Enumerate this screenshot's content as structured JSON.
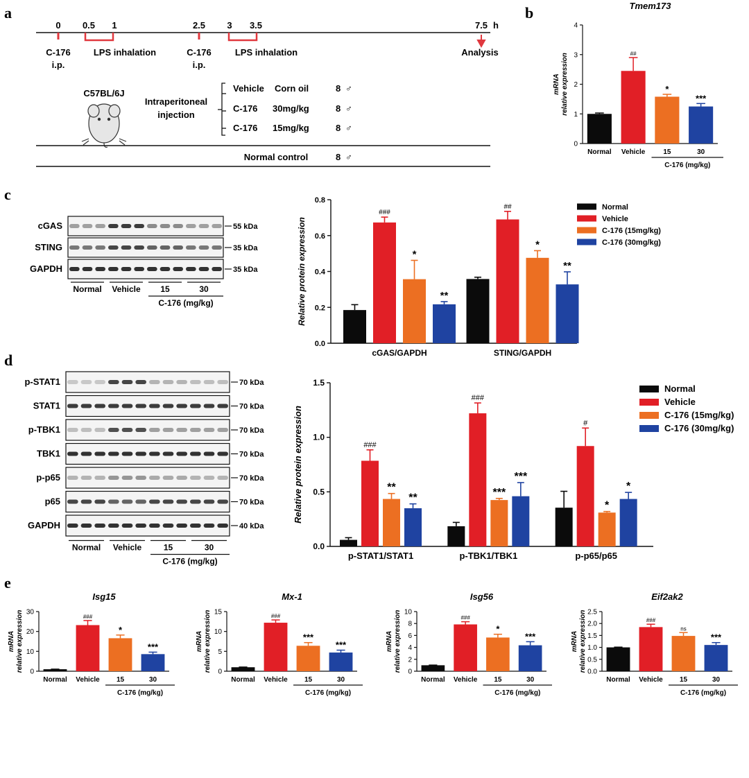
{
  "colors": {
    "normal": "#0b0b0b",
    "vehicle": "#e11f26",
    "c15": "#ec6f22",
    "c30": "#1f43a1",
    "timeline_marker": "#e0383e"
  },
  "panel_labels": {
    "a": "a",
    "b": "b",
    "c": "c",
    "d": "d",
    "e": "e"
  },
  "panel_a": {
    "times": [
      "0",
      "0.5",
      "1",
      "2.5",
      "3",
      "3.5",
      "7.5",
      "h"
    ],
    "events": {
      "c176_1": "C-176",
      "ip_1": "i.p.",
      "lps_1": "LPS inhalation",
      "c176_2": "C-176",
      "ip_2": "i.p.",
      "lps_2": "LPS inhalation",
      "analysis": "Analysis"
    },
    "strain": "C57BL/6J",
    "injection": [
      "Intraperitoneal",
      "injection"
    ],
    "groups": [
      {
        "name": "Vehicle",
        "dose": "Corn oil",
        "n": "8",
        "sex": "♂"
      },
      {
        "name": "C-176",
        "dose": "30mg/kg",
        "n": "8",
        "sex": "♂"
      },
      {
        "name": "C-176",
        "dose": "15mg/kg",
        "n": "8",
        "sex": "♂"
      }
    ],
    "control": {
      "name": "Normal control",
      "n": "8",
      "sex": "♂"
    }
  },
  "blot_c": {
    "rows": [
      {
        "label": "cGAS",
        "kda": "55 kDa"
      },
      {
        "label": "STING",
        "kda": "35 kDa"
      },
      {
        "label": "GAPDH",
        "kda": "35 kDa"
      }
    ],
    "groups": [
      "Normal",
      "Vehicle",
      "15",
      "30"
    ],
    "dose_label": "C-176 (mg/kg)"
  },
  "blot_d": {
    "rows": [
      {
        "label": "p-STAT1",
        "kda": "70 kDa"
      },
      {
        "label": "STAT1",
        "kda": "70 kDa"
      },
      {
        "label": "p-TBK1",
        "kda": "70 kDa"
      },
      {
        "label": "TBK1",
        "kda": "70 kDa"
      },
      {
        "label": "p-p65",
        "kda": "70 kDa"
      },
      {
        "label": "p65",
        "kda": "70 kDa"
      },
      {
        "label": "GAPDH",
        "kda": "40 kDa"
      }
    ],
    "groups": [
      "Normal",
      "Vehicle",
      "15",
      "30"
    ],
    "dose_label": "C-176 (mg/kg)"
  },
  "chart_data": [
    {
      "id": "b",
      "type": "bar",
      "title": "Tmem173",
      "ylabel": "mRNA relative expression",
      "ylim": [
        0,
        4
      ],
      "yticks": [
        "0",
        "1",
        "2",
        "3",
        "4"
      ],
      "categories": [
        "Normal",
        "Vehicle",
        "15",
        "30"
      ],
      "group_label": "C-176 (mg/kg)",
      "values": [
        1.0,
        2.45,
        1.58,
        1.25
      ],
      "errors": [
        0.03,
        0.45,
        0.08,
        0.1
      ],
      "annotations": [
        "",
        "##",
        "*",
        "***"
      ]
    },
    {
      "id": "c",
      "type": "bar",
      "ylabel": "Relative protein expression",
      "ylim": [
        0,
        0.8
      ],
      "yticks": [
        "0.0",
        "0.2",
        "0.4",
        "0.6",
        "0.8"
      ],
      "groups": [
        "cGAS/GAPDH",
        "STING/GAPDH"
      ],
      "legend": [
        "Normal",
        "Vehicle",
        "C-176 (15mg/kg)",
        "C-176 (30mg/kg)"
      ],
      "series": [
        {
          "name": "Normal",
          "values": [
            0.185,
            0.358
          ],
          "errors": [
            0.03,
            0.01
          ],
          "annotations": [
            "",
            ""
          ]
        },
        {
          "name": "Vehicle",
          "values": [
            0.673,
            0.69
          ],
          "errors": [
            0.03,
            0.045
          ],
          "annotations": [
            "###",
            "##"
          ]
        },
        {
          "name": "C-176 (15mg/kg)",
          "values": [
            0.357,
            0.476
          ],
          "errors": [
            0.105,
            0.04
          ],
          "annotations": [
            "*",
            "*"
          ]
        },
        {
          "name": "C-176 (30mg/kg)",
          "values": [
            0.217,
            0.328
          ],
          "errors": [
            0.015,
            0.07
          ],
          "annotations": [
            "**",
            "**"
          ]
        }
      ]
    },
    {
      "id": "d",
      "type": "bar",
      "ylabel": "Relative protein expression",
      "ylim": [
        0,
        1.5
      ],
      "yticks": [
        "0.0",
        "0.5",
        "1.0",
        "1.5"
      ],
      "groups": [
        "p-STAT1/STAT1",
        "p-TBK1/TBK1",
        "p-p65/p65"
      ],
      "legend": [
        "Normal",
        "Vehicle",
        "C-176 (15mg/kg)",
        "C-176 (30mg/kg)"
      ],
      "series": [
        {
          "name": "Normal",
          "values": [
            0.06,
            0.185,
            0.355
          ],
          "errors": [
            0.02,
            0.035,
            0.15
          ],
          "annotations": [
            "",
            "",
            ""
          ]
        },
        {
          "name": "Vehicle",
          "values": [
            0.785,
            1.22,
            0.92
          ],
          "errors": [
            0.1,
            0.095,
            0.165
          ],
          "annotations": [
            "###",
            "###",
            "#"
          ]
        },
        {
          "name": "C-176 (15mg/kg)",
          "values": [
            0.435,
            0.425,
            0.31
          ],
          "errors": [
            0.05,
            0.015,
            0.01
          ],
          "annotations": [
            "**",
            "***",
            "*"
          ]
        },
        {
          "name": "C-176 (30mg/kg)",
          "values": [
            0.35,
            0.46,
            0.435
          ],
          "errors": [
            0.04,
            0.125,
            0.06
          ],
          "annotations": [
            "**",
            "***",
            "*"
          ]
        }
      ]
    },
    {
      "id": "e1",
      "type": "bar",
      "title": "Isg15",
      "ylabel": "mRNA relative expression",
      "ylim": [
        0,
        30
      ],
      "yticks": [
        "0",
        "10",
        "20",
        "30"
      ],
      "categories": [
        "Normal",
        "Vehicle",
        "15",
        "30"
      ],
      "group_label": "C-176 (mg/kg)",
      "values": [
        1.0,
        23.2,
        16.6,
        8.6
      ],
      "errors": [
        0.05,
        2.3,
        1.6,
        1.0
      ],
      "annotations": [
        "",
        "###",
        "*",
        "***"
      ]
    },
    {
      "id": "e2",
      "type": "bar",
      "title": "Mx-1",
      "ylabel": "mRNA relative expression",
      "ylim": [
        0,
        15
      ],
      "yticks": [
        "0",
        "5",
        "10",
        "15"
      ],
      "categories": [
        "Normal",
        "Vehicle",
        "15",
        "30"
      ],
      "group_label": "C-176 (mg/kg)",
      "values": [
        1.0,
        12.2,
        6.4,
        4.7
      ],
      "errors": [
        0.05,
        0.7,
        0.8,
        0.6
      ],
      "annotations": [
        "",
        "###",
        "***",
        "***"
      ]
    },
    {
      "id": "e3",
      "type": "bar",
      "title": "Isg56",
      "ylabel": "mRNA relative expression",
      "ylim": [
        0,
        10
      ],
      "yticks": [
        "0",
        "2",
        "4",
        "6",
        "8",
        "10"
      ],
      "categories": [
        "Normal",
        "Vehicle",
        "15",
        "30"
      ],
      "group_label": "C-176 (mg/kg)",
      "values": [
        1.0,
        7.85,
        5.65,
        4.35
      ],
      "errors": [
        0.03,
        0.45,
        0.55,
        0.6
      ],
      "annotations": [
        "",
        "###",
        "*",
        "***"
      ]
    },
    {
      "id": "e4",
      "type": "bar",
      "title": "Eif2ak2",
      "ylabel": "mRNA relative expression",
      "ylim": [
        0,
        2.5
      ],
      "yticks": [
        "0.0",
        "0.5",
        "1.0",
        "1.5",
        "2.0",
        "2.5"
      ],
      "categories": [
        "Normal",
        "Vehicle",
        "15",
        "30"
      ],
      "group_label": "C-176 (mg/kg)",
      "values": [
        1.0,
        1.85,
        1.48,
        1.1
      ],
      "errors": [
        0.01,
        0.12,
        0.14,
        0.1
      ],
      "annotations": [
        "",
        "###",
        "ns",
        "***"
      ]
    }
  ]
}
